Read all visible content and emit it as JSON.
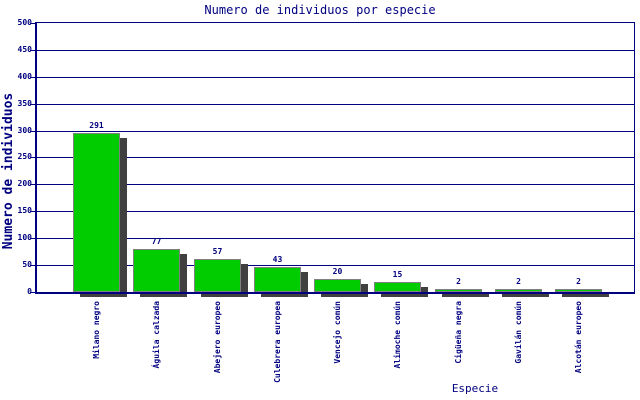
{
  "title": "Numero de individuos por especie",
  "chart_data": {
    "type": "bar",
    "title": "Numero de individuos por especie",
    "xlabel": "Especie",
    "ylabel": "Numero de individuos",
    "categories": [
      "Milano negro",
      "Águila calzada",
      "Abejero europeo",
      "Culebrera europea",
      "Vencejo común",
      "Alimoche común",
      "Cigüeña negra",
      "Gavilán común",
      "Alcotán europeo"
    ],
    "values": [
      291,
      77,
      57,
      43,
      20,
      15,
      2,
      2,
      2
    ],
    "value_labels": [
      "291",
      "77",
      "57",
      "43",
      "20",
      "15",
      "2",
      "2",
      "2"
    ],
    "ylim": [
      0,
      500
    ],
    "yticks": [
      0,
      50,
      100,
      150,
      200,
      250,
      300,
      350,
      400,
      450,
      500
    ],
    "grid": "horizontal",
    "legend": "none",
    "colors": {
      "text": "#000080",
      "axis": "#000080",
      "grid": "#000080",
      "bar_fill": "#00CC00",
      "bar_border": "#808080",
      "bar_shadow": "#404040",
      "background": "#FFFFFF"
    }
  }
}
